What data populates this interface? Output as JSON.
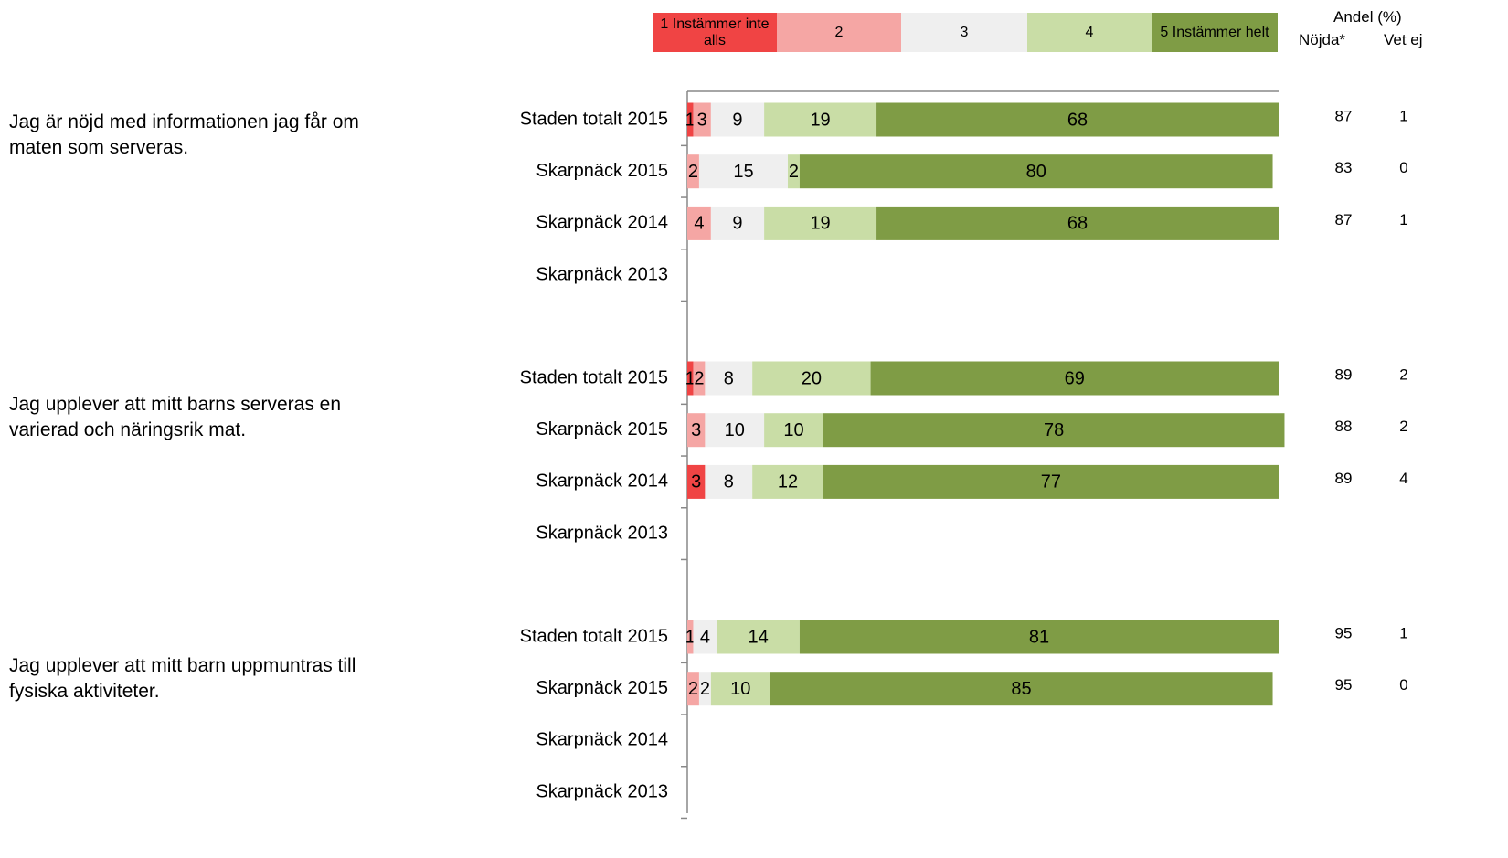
{
  "chart_data": {
    "type": "bar",
    "orientation": "horizontal",
    "stacked": true,
    "xlim": [
      0,
      100
    ],
    "series": [
      {
        "name": "1 Instämmer inte alls",
        "color": "#f04444"
      },
      {
        "name": "2",
        "color": "#f5a6a4"
      },
      {
        "name": "3",
        "color": "#efefef"
      },
      {
        "name": "4",
        "color": "#c9dda6"
      },
      {
        "name": "5 Instämmer helt",
        "color": "#7f9c45"
      }
    ],
    "header": "Andel (%)",
    "column_headers": [
      "Nöjda*",
      "Vet ej"
    ],
    "groups": [
      {
        "question": "Jag är nöjd med informationen jag får om maten som serveras.",
        "rows": [
          {
            "label": "Staden totalt 2015",
            "values": [
              1,
              3,
              9,
              19,
              68
            ],
            "columns": [
              87,
              1
            ]
          },
          {
            "label": "Skarpnäck 2015",
            "values": [
              0,
              2,
              15,
              2,
              80
            ],
            "columns": [
              83,
              0
            ]
          },
          {
            "label": "Skarpnäck 2014",
            "values": [
              0,
              4,
              9,
              19,
              68
            ],
            "columns": [
              87,
              1
            ]
          },
          {
            "label": "Skarpnäck 2013",
            "values": [
              null,
              null,
              null,
              null,
              null
            ],
            "columns": [
              null,
              null
            ]
          }
        ]
      },
      {
        "question": "Jag upplever att mitt barns serveras en varierad och näringsrik mat.",
        "rows": [
          {
            "label": "Staden totalt 2015",
            "values": [
              1,
              2,
              8,
              20,
              69
            ],
            "columns": [
              89,
              2
            ]
          },
          {
            "label": "Skarpnäck 2015",
            "values": [
              0,
              3,
              10,
              10,
              78
            ],
            "columns": [
              88,
              2
            ]
          },
          {
            "label": "Skarpnäck 2014",
            "values": [
              3,
              0,
              8,
              12,
              77
            ],
            "columns": [
              89,
              4
            ]
          },
          {
            "label": "Skarpnäck 2013",
            "values": [
              null,
              null,
              null,
              null,
              null
            ],
            "columns": [
              null,
              null
            ]
          }
        ]
      },
      {
        "question": "Jag upplever att mitt barn uppmuntras till fysiska aktiviteter.",
        "rows": [
          {
            "label": "Staden totalt 2015",
            "values": [
              0,
              1,
              4,
              14,
              81
            ],
            "columns": [
              95,
              1
            ]
          },
          {
            "label": "Skarpnäck 2015",
            "values": [
              0,
              2,
              2,
              10,
              85
            ],
            "columns": [
              95,
              0
            ]
          },
          {
            "label": "Skarpnäck 2014",
            "values": [
              null,
              null,
              null,
              null,
              null
            ],
            "columns": [
              null,
              null
            ]
          },
          {
            "label": "Skarpnäck 2013",
            "values": [
              null,
              null,
              null,
              null,
              null
            ],
            "columns": [
              null,
              null
            ]
          }
        ]
      }
    ]
  }
}
